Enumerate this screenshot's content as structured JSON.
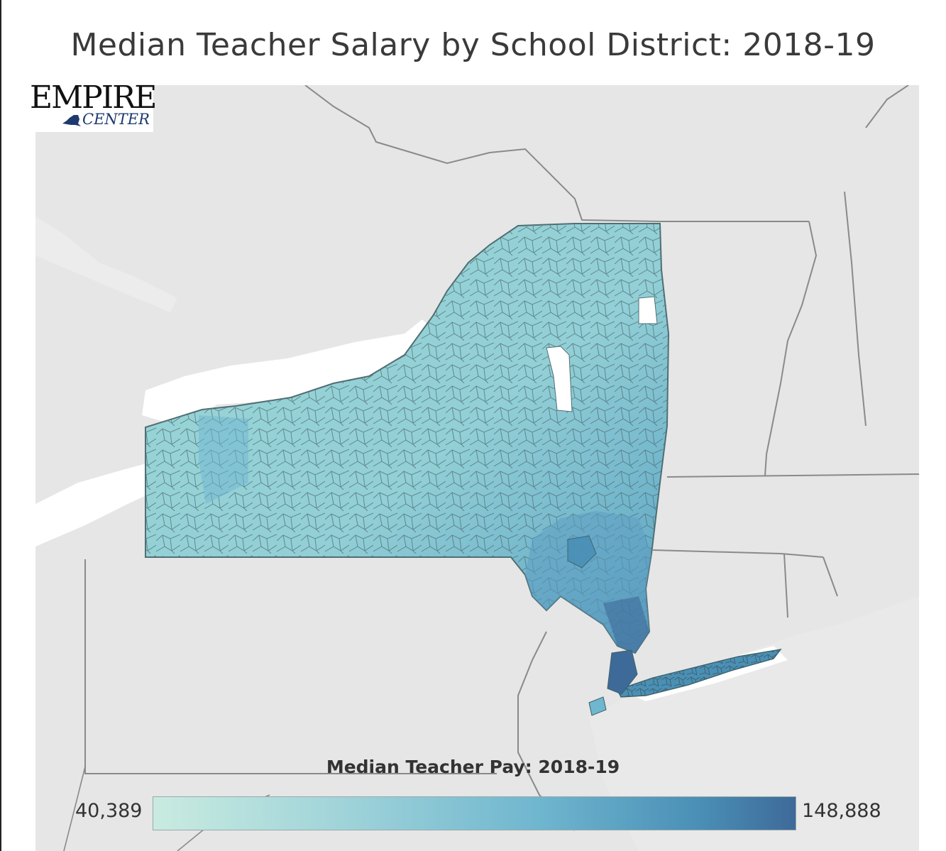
{
  "title": "Median Teacher Salary by School District: 2018-19",
  "logo": {
    "line1": "EMPIRE",
    "line2": "CENTER"
  },
  "legend": {
    "title": "Median Teacher Pay: 2018-19",
    "min_label": "40,389",
    "max_label": "148,888",
    "min_value": 40389,
    "max_value": 148888,
    "color_low": "#c9ebe0",
    "color_high": "#3e6a99"
  },
  "colors": {
    "land": "#e6e6e6",
    "water": "#ffffff",
    "state_fill": "#9ed6d6",
    "district_border": "#4f6f74",
    "border": "#8a8a8a"
  }
}
